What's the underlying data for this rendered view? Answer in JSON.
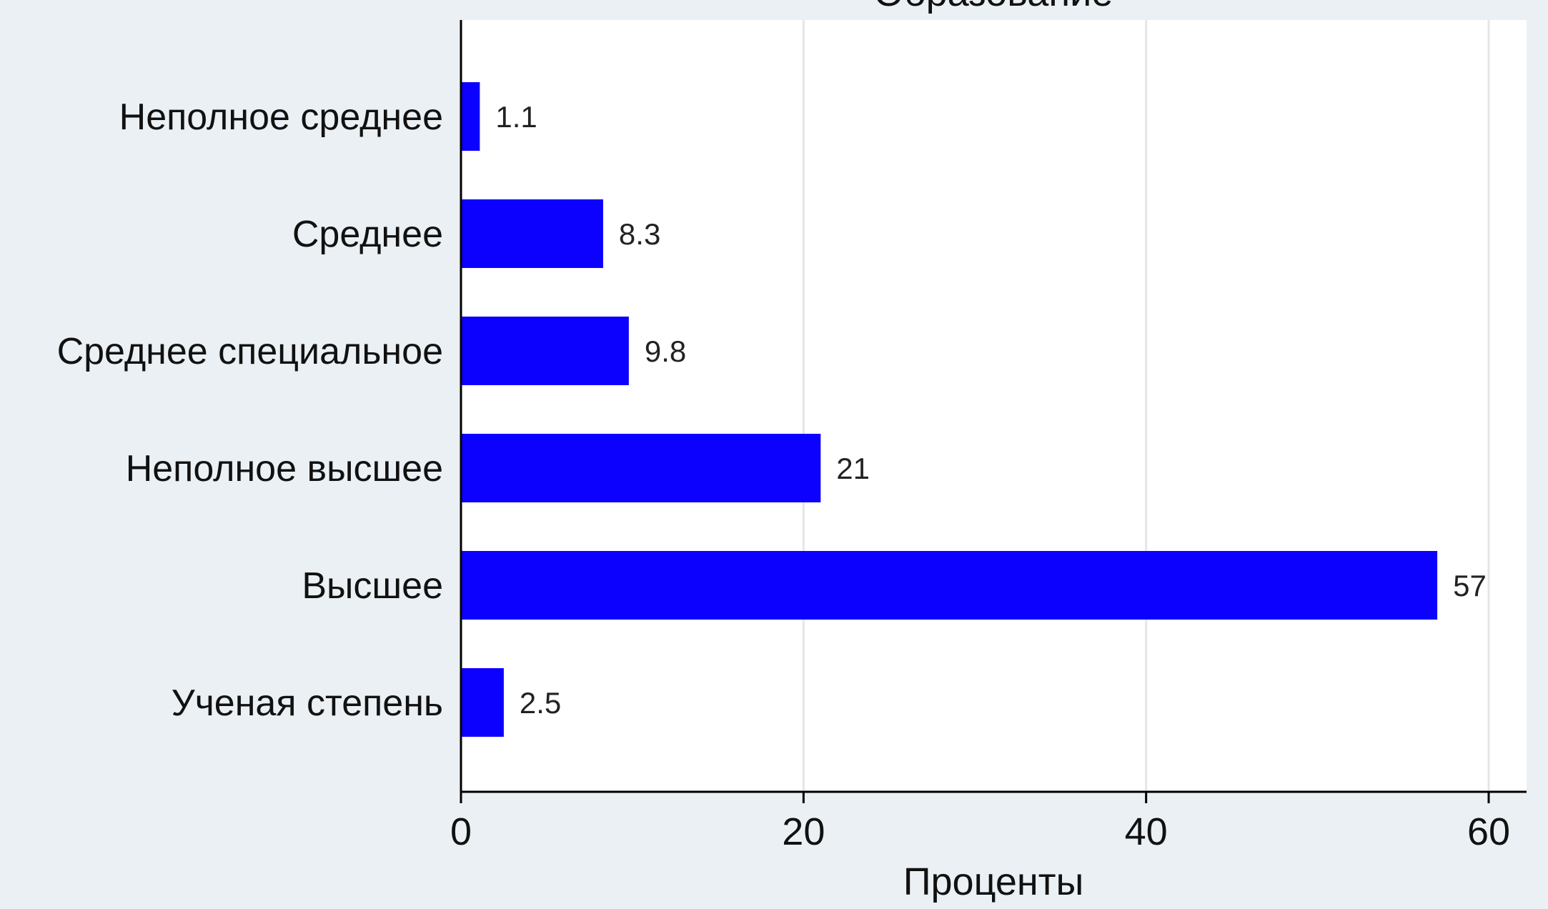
{
  "chart_data": {
    "type": "bar",
    "orientation": "horizontal",
    "title": "Образование",
    "xlabel": "Проценты",
    "ylabel": "",
    "categories": [
      "Неполное среднее",
      "Среднее",
      "Среднее специальное",
      "Неполное высшее",
      "Высшее",
      "Ученая степень"
    ],
    "values": [
      1.1,
      8.3,
      9.8,
      21,
      57,
      2.5
    ],
    "value_labels": [
      "1.1",
      "8.3",
      "9.8",
      "21",
      "57",
      "2.5"
    ],
    "xlim": [
      0,
      60
    ],
    "xticks": [
      0,
      20,
      40,
      60
    ],
    "xtick_labels": [
      "0",
      "20",
      "40",
      "60"
    ],
    "grid": true,
    "bar_color": "#0c00ff",
    "plot_background": "#ffffff",
    "page_background": "#eaf0f3",
    "legend": "none"
  }
}
